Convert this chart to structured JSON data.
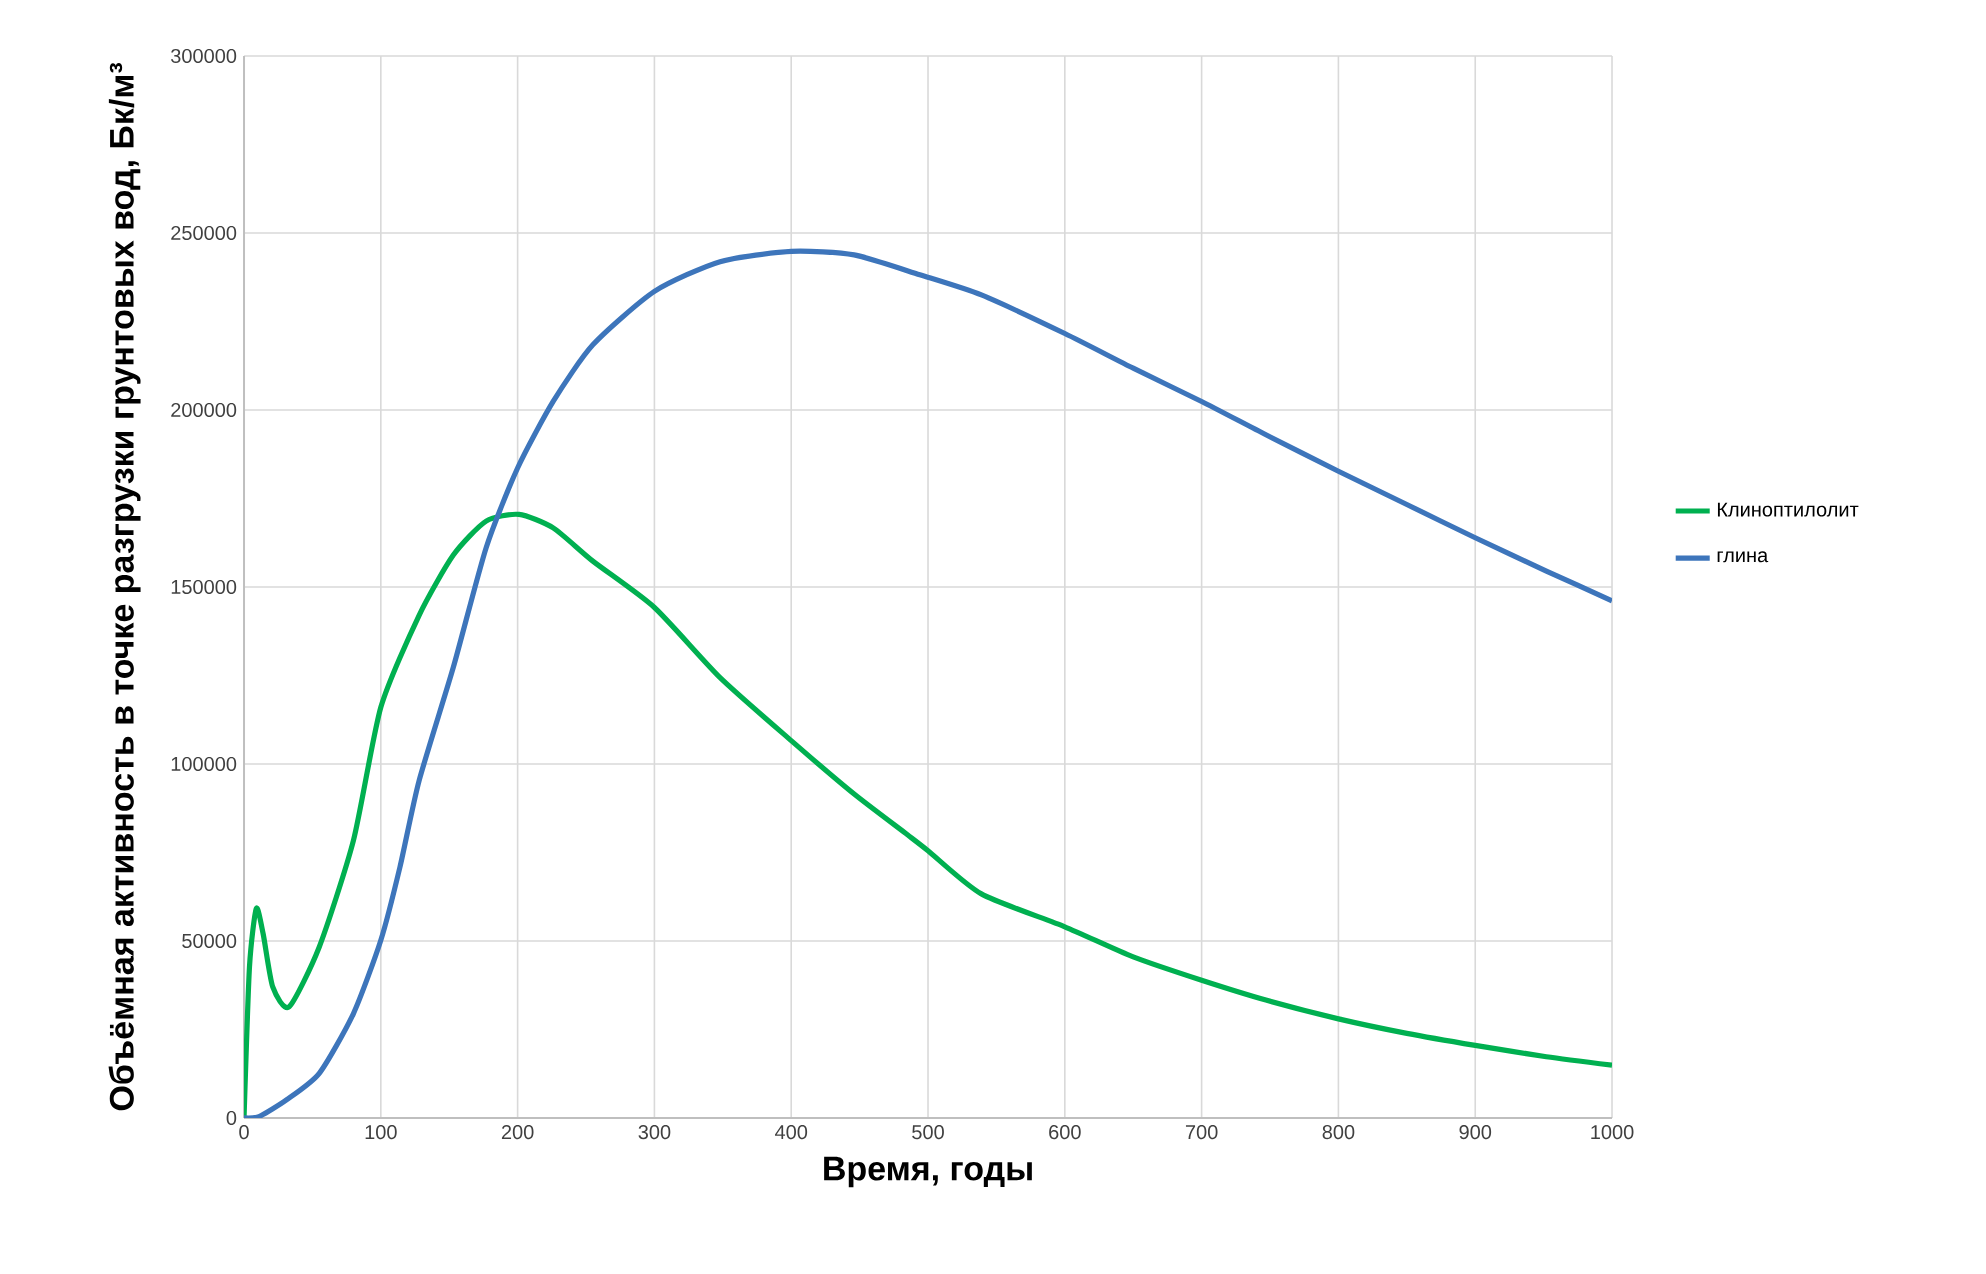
{
  "chart_data": {
    "type": "line",
    "xlabel": "Время, годы",
    "ylabel": "Объёмная активность в точке разгрузки грунтовых вод, Бк/м³",
    "xlim": [
      0,
      1000
    ],
    "ylim": [
      0,
      300000
    ],
    "xticks": [
      0,
      100,
      200,
      300,
      400,
      500,
      600,
      700,
      800,
      900,
      1000
    ],
    "yticks": [
      0,
      50000,
      100000,
      150000,
      200000,
      250000,
      300000
    ],
    "grid": true,
    "legend": "right",
    "series": [
      {
        "name": "Клиноптилолит",
        "color": "#00b050",
        "x": [
          0,
          4,
          9,
          14,
          21,
          33,
          55,
          80,
          100,
          128,
          153,
          177,
          201,
          226,
          255,
          300,
          348,
          400,
          446,
          485,
          500,
          539,
          600,
          650,
          700,
          747,
          800,
          850,
          900,
          952,
          1000
        ],
        "values": [
          0,
          42700,
          59200,
          52000,
          37000,
          31400,
          48300,
          78400,
          116000,
          142000,
          159000,
          168600,
          170500,
          166700,
          157300,
          144200,
          124400,
          106600,
          91500,
          80000,
          75500,
          63300,
          54000,
          45500,
          38900,
          33300,
          28000,
          23900,
          20500,
          17300,
          14900
        ]
      },
      {
        "name": "глина",
        "color": "#3d75bb",
        "x": [
          0,
          11,
          31,
          55,
          80,
          100,
          114,
          128,
          153,
          177,
          200,
          226,
          255,
          300,
          348,
          400,
          446,
          494,
          539,
          600,
          650,
          700,
          747,
          800,
          850,
          900,
          952,
          1000
        ],
        "values": [
          0,
          400,
          5100,
          12600,
          29500,
          50200,
          70900,
          95300,
          127300,
          161100,
          183600,
          202400,
          218400,
          233500,
          241900,
          244800,
          243800,
          238200,
          232500,
          221600,
          211800,
          202400,
          193000,
          182700,
          173300,
          163900,
          154500,
          146100
        ]
      }
    ]
  }
}
